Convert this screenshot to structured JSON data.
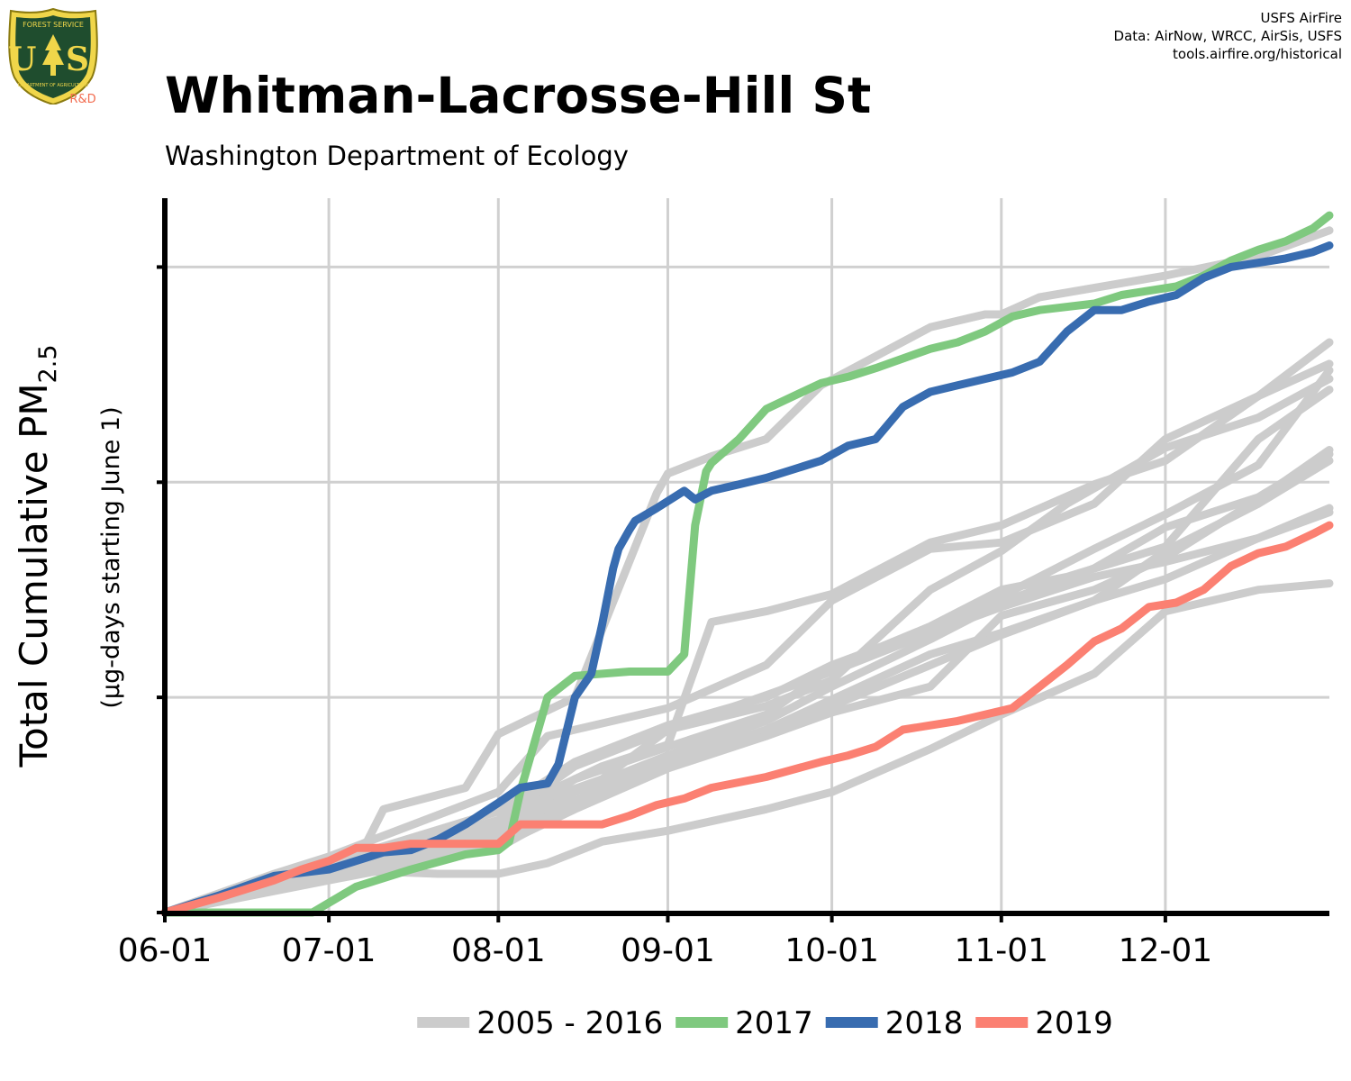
{
  "logo": {
    "text_top": "FOREST SERVICE",
    "letters": "U S",
    "text_bottom": "DEPARTMENT OF AGRICULTURE",
    "badge": "R&D"
  },
  "credits": [
    "USFS AirFire",
    "Data: AirNow, WRCC, AirSis, USFS",
    "tools.airfire.org/historical"
  ],
  "colors": {
    "historical": "#cccccc",
    "y2017": "#7fc97f",
    "y2018": "#386cb0",
    "y2019": "#fb8072",
    "grid": "#d0d0d0",
    "axis": "#000000",
    "logo_badge": "#f26c4f"
  },
  "chart_data": {
    "type": "line",
    "title": "Whitman-Lacrosse-Hill St",
    "subtitle": "Washington Department of Ecology",
    "ylabel": "Total Cumulative PM",
    "ylabel_sub": "2.5",
    "ylabel_units": "(µg-days starting June 1)",
    "xlabel": "",
    "x_ticks": [
      "06-01",
      "07-01",
      "08-01",
      "09-01",
      "10-01",
      "11-01",
      "12-01"
    ],
    "x_tick_days": [
      0,
      30,
      61,
      92,
      122,
      153,
      183
    ],
    "xlim": [
      0,
      213
    ],
    "ylim": [
      0,
      3320
    ],
    "y_gridlines": [
      0,
      1000,
      2000,
      3000
    ],
    "y_tick_labels": false,
    "grid": true,
    "legend_position": "bottom",
    "legend": [
      {
        "label": "2005 - 2016",
        "color_key": "historical"
      },
      {
        "label": "2017",
        "color_key": "y2017"
      },
      {
        "label": "2018",
        "color_key": "y2018"
      },
      {
        "label": "2019",
        "color_key": "y2019"
      }
    ],
    "historical_series": [
      {
        "x": [
          0,
          15,
          30,
          37,
          40,
          55,
          61,
          75,
          90,
          92,
          100,
          110,
          120,
          140,
          150,
          153,
          160,
          183,
          200,
          213
        ],
        "y": [
          0,
          100,
          230,
          330,
          480,
          580,
          830,
          1000,
          1950,
          2040,
          2120,
          2200,
          2450,
          2720,
          2780,
          2780,
          2860,
          2960,
          3050,
          3170
        ]
      },
      {
        "x": [
          0,
          30,
          61,
          75,
          92,
          110,
          122,
          140,
          153,
          170,
          183,
          200,
          213
        ],
        "y": [
          0,
          230,
          470,
          700,
          870,
          1000,
          1150,
          1320,
          1470,
          1690,
          1850,
          2080,
          2520
        ]
      },
      {
        "x": [
          0,
          30,
          61,
          70,
          80,
          92,
          100,
          110,
          122,
          140,
          153,
          170,
          183,
          200,
          213
        ],
        "y": [
          0,
          200,
          420,
          560,
          680,
          780,
          1350,
          1400,
          1480,
          1720,
          1800,
          1990,
          2100,
          2400,
          2650
        ]
      },
      {
        "x": [
          0,
          30,
          61,
          75,
          92,
          110,
          122,
          140,
          153,
          165,
          183,
          200,
          213
        ],
        "y": [
          0,
          210,
          430,
          680,
          850,
          960,
          1080,
          1500,
          1680,
          1900,
          2160,
          2300,
          2480
        ]
      },
      {
        "x": [
          0,
          30,
          61,
          70,
          80,
          92,
          110,
          122,
          140,
          153,
          170,
          183,
          200,
          213
        ],
        "y": [
          0,
          180,
          380,
          530,
          620,
          850,
          1010,
          1120,
          1300,
          1420,
          1560,
          1630,
          1740,
          1860
        ]
      },
      {
        "x": [
          0,
          30,
          61,
          75,
          92,
          110,
          122,
          140,
          153,
          170,
          183,
          200,
          213
        ],
        "y": [
          0,
          160,
          340,
          520,
          700,
          850,
          990,
          1200,
          1300,
          1450,
          1680,
          1900,
          2100
        ]
      },
      {
        "x": [
          0,
          30,
          61,
          75,
          92,
          110,
          122,
          140,
          153,
          170,
          183,
          200,
          213
        ],
        "y": [
          0,
          150,
          300,
          500,
          680,
          820,
          960,
          1150,
          1290,
          1450,
          1550,
          1740,
          1880
        ]
      },
      {
        "x": [
          0,
          20,
          30,
          61,
          70,
          92,
          110,
          122,
          140,
          153,
          170,
          183,
          200,
          213
        ],
        "y": [
          0,
          180,
          260,
          560,
          820,
          950,
          1150,
          1450,
          1690,
          1720,
          1900,
          2200,
          2400,
          2550
        ]
      },
      {
        "x": [
          0,
          30,
          61,
          75,
          92,
          110,
          122,
          140,
          153,
          170,
          183,
          200,
          213
        ],
        "y": [
          0,
          170,
          310,
          480,
          670,
          820,
          930,
          1050,
          1380,
          1500,
          1650,
          1920,
          2150
        ]
      },
      {
        "x": [
          0,
          10,
          20,
          30,
          40,
          50,
          61,
          70,
          80,
          92,
          110,
          122,
          140,
          153,
          170,
          183,
          200,
          213
        ],
        "y": [
          0,
          70,
          140,
          190,
          190,
          180,
          180,
          230,
          330,
          380,
          480,
          560,
          760,
          920,
          1110,
          1400,
          1500,
          1530
        ]
      },
      {
        "x": [
          0,
          30,
          61,
          75,
          92,
          110,
          122,
          140,
          153,
          170,
          183,
          200,
          213
        ],
        "y": [
          0,
          170,
          360,
          560,
          730,
          890,
          1050,
          1270,
          1440,
          1600,
          1790,
          1930,
          2130
        ]
      },
      {
        "x": [
          0,
          30,
          61,
          75,
          92,
          110,
          122,
          140,
          153,
          165,
          183,
          200,
          213
        ],
        "y": [
          0,
          190,
          400,
          620,
          770,
          920,
          1140,
          1330,
          1500,
          1560,
          1700,
          2200,
          2430
        ]
      }
    ],
    "series": [
      {
        "name": "2017",
        "color_key": "y2017",
        "x": [
          0,
          15,
          27,
          35,
          45,
          55,
          61,
          63,
          65,
          70,
          75,
          85,
          92,
          95,
          97,
          99,
          100,
          105,
          110,
          115,
          120,
          125,
          130,
          140,
          145,
          150,
          155,
          160,
          170,
          175,
          180,
          185,
          190,
          195,
          200,
          205,
          210,
          213
        ],
        "y": [
          0,
          0,
          0,
          120,
          200,
          270,
          290,
          330,
          560,
          1000,
          1100,
          1120,
          1120,
          1200,
          1800,
          2050,
          2090,
          2200,
          2340,
          2400,
          2460,
          2490,
          2530,
          2620,
          2650,
          2700,
          2770,
          2800,
          2830,
          2870,
          2890,
          2910,
          2960,
          3030,
          3080,
          3120,
          3180,
          3240
        ]
      },
      {
        "name": "2018",
        "color_key": "y2018",
        "x": [
          0,
          5,
          10,
          20,
          30,
          40,
          45,
          50,
          55,
          61,
          65,
          70,
          72,
          75,
          78,
          80,
          82,
          83,
          85,
          86,
          88,
          90,
          95,
          97,
          100,
          105,
          110,
          115,
          120,
          125,
          130,
          135,
          140,
          145,
          150,
          155,
          160,
          165,
          170,
          175,
          180,
          185,
          190,
          195,
          200,
          205,
          210,
          213
        ],
        "y": [
          0,
          40,
          80,
          170,
          200,
          280,
          290,
          340,
          410,
          510,
          580,
          600,
          690,
          1000,
          1110,
          1340,
          1600,
          1690,
          1780,
          1820,
          1850,
          1880,
          1960,
          1920,
          1960,
          1990,
          2020,
          2060,
          2100,
          2170,
          2200,
          2350,
          2420,
          2450,
          2480,
          2510,
          2560,
          2700,
          2800,
          2800,
          2840,
          2870,
          2950,
          3000,
          3020,
          3040,
          3070,
          3100
        ]
      },
      {
        "name": "2019",
        "color_key": "y2019",
        "x": [
          0,
          10,
          20,
          25,
          30,
          35,
          40,
          45,
          50,
          55,
          61,
          65,
          68,
          70,
          80,
          85,
          90,
          95,
          100,
          110,
          120,
          125,
          130,
          135,
          140,
          145,
          150,
          155,
          160,
          165,
          170,
          175,
          180,
          185,
          190,
          195,
          200,
          205,
          210,
          213
        ],
        "y": [
          0,
          70,
          150,
          200,
          240,
          300,
          300,
          320,
          320,
          320,
          320,
          410,
          410,
          410,
          410,
          450,
          500,
          530,
          580,
          630,
          700,
          730,
          770,
          850,
          870,
          890,
          920,
          950,
          1050,
          1150,
          1260,
          1320,
          1420,
          1440,
          1500,
          1610,
          1670,
          1700,
          1760,
          1800
        ]
      }
    ]
  }
}
